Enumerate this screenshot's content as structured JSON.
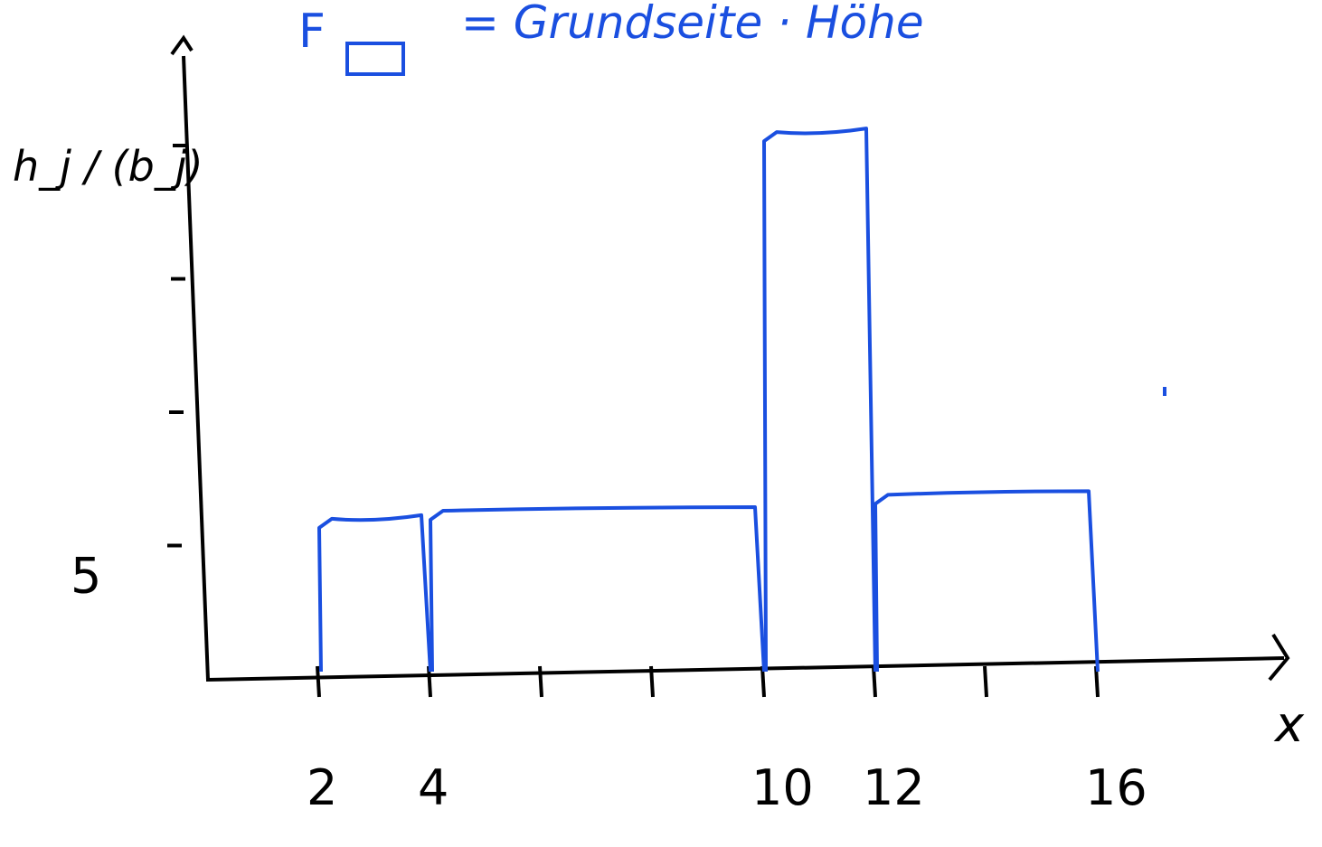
{
  "annotation": {
    "formula_symbol": "F",
    "formula_text": "= Grundseite · Höhe",
    "color": "#1a4fe0"
  },
  "chart_data": {
    "type": "bar",
    "title": "",
    "xlabel": "x",
    "ylabel": "h_j / (b_j)",
    "y_tick_labels": [
      "5"
    ],
    "x_tick_labels": [
      "2",
      "4",
      "10",
      "12",
      "16"
    ],
    "xlim": [
      0,
      20
    ],
    "ylim": [
      0,
      20
    ],
    "axis_color": "#000000",
    "bar_color": "#1a4fe0",
    "bars": [
      {
        "x_start": 2,
        "x_end": 4,
        "height": 5.8
      },
      {
        "x_start": 4,
        "x_end": 10,
        "height": 6.1
      },
      {
        "x_start": 10,
        "x_end": 12,
        "height": 20.3
      },
      {
        "x_start": 12,
        "x_end": 16,
        "height": 6.7
      }
    ]
  }
}
